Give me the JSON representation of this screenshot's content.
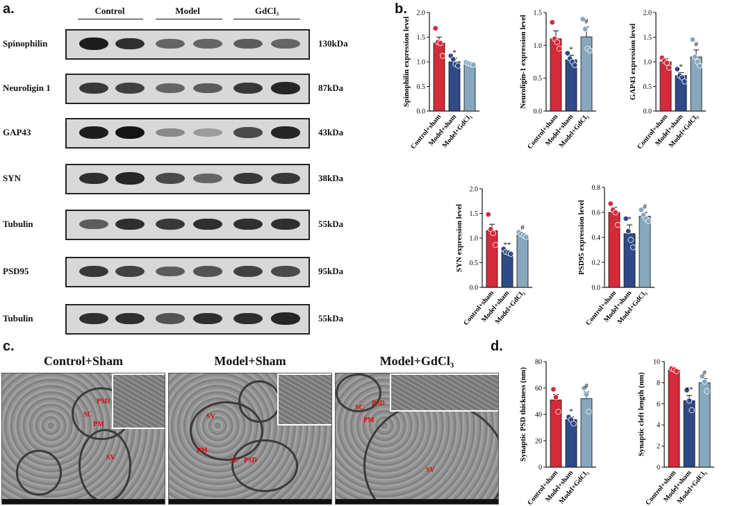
{
  "panels": {
    "a": "a.",
    "b": "b.",
    "c": "c.",
    "d": "d."
  },
  "western_blot": {
    "groups": [
      "Control",
      "Model",
      "GdCl₃"
    ],
    "rows": [
      {
        "label": "Spinophilin",
        "kda": "130kDa",
        "intensity": [
          0.95,
          0.85,
          0.55,
          0.55,
          0.6,
          0.55
        ]
      },
      {
        "label": "Neuroligin 1",
        "kda": "87kDa",
        "intensity": [
          0.8,
          0.75,
          0.55,
          0.6,
          0.8,
          0.9
        ]
      },
      {
        "label": "GAP43",
        "kda": "43kDa",
        "intensity": [
          0.95,
          1.0,
          0.35,
          0.25,
          0.7,
          0.9
        ]
      },
      {
        "label": "SYN",
        "kda": "38kDa",
        "intensity": [
          0.85,
          0.9,
          0.7,
          0.55,
          0.8,
          0.8
        ]
      },
      {
        "label": "Tubulin",
        "kda": "55kDa",
        "intensity": [
          0.6,
          0.85,
          0.8,
          0.85,
          0.85,
          0.85
        ]
      },
      {
        "label": "PSD95",
        "kda": "95kDa",
        "intensity": [
          0.8,
          0.75,
          0.6,
          0.65,
          0.75,
          0.7
        ]
      },
      {
        "label": "Tubulin",
        "kda": "55kDa",
        "intensity": [
          0.85,
          0.85,
          0.65,
          0.85,
          0.85,
          0.9
        ]
      }
    ]
  },
  "colors": {
    "control": "#d42a3a",
    "model": "#2f4a86",
    "gdcl3": "#86a7bd"
  },
  "chart_data": [
    {
      "type": "bar",
      "ylabel": "Spinophilin expression level",
      "categories": [
        "Control+sham",
        "Model+sham",
        "Model+GdCl₃"
      ],
      "values": [
        1.38,
        1.0,
        0.96
      ],
      "errors": [
        0.12,
        0.07,
        0.02
      ],
      "ylim": [
        0,
        2.0
      ],
      "yticks": [
        "0.0",
        "0.5",
        "1.0",
        "1.5",
        "2.0"
      ],
      "points": [
        [
          1.68,
          1.4,
          1.38,
          1.12
        ],
        [
          1.12,
          1.05,
          0.95,
          0.92
        ],
        [
          0.99,
          0.97,
          0.95,
          0.94
        ]
      ],
      "sig": [
        "",
        "*",
        ""
      ]
    },
    {
      "type": "bar",
      "ylabel": "Neuroligin-1 expression level",
      "categories": [
        "Control+sham",
        "Model+sham",
        "Model+GdCl₃"
      ],
      "values": [
        1.1,
        0.78,
        1.13
      ],
      "errors": [
        0.12,
        0.07,
        0.15
      ],
      "ylim": [
        0,
        1.5
      ],
      "yticks": [
        "0.0",
        "0.5",
        "1.0",
        "1.5"
      ],
      "points": [
        [
          1.35,
          1.1,
          1.05,
          0.95
        ],
        [
          0.88,
          0.8,
          0.75,
          0.7
        ],
        [
          1.4,
          1.25,
          0.95,
          0.92
        ]
      ],
      "sig": [
        "",
        "*",
        "#"
      ]
    },
    {
      "type": "bar",
      "ylabel": "GAP43 expression level",
      "categories": [
        "Control+sham",
        "Model+sham",
        "Model+GdCl₃"
      ],
      "values": [
        1.0,
        0.72,
        1.1
      ],
      "errors": [
        0.06,
        0.06,
        0.14
      ],
      "ylim": [
        0,
        2.0
      ],
      "yticks": [
        "0.0",
        "0.5",
        "1.0",
        "1.5",
        "2.0"
      ],
      "points": [
        [
          1.08,
          1.02,
          0.98,
          0.88
        ],
        [
          0.85,
          0.72,
          0.68,
          0.6
        ],
        [
          1.45,
          1.1,
          1.0,
          0.92
        ]
      ],
      "sig": [
        "",
        "*",
        "#"
      ]
    },
    {
      "type": "bar",
      "ylabel": "SYN expression level",
      "categories": [
        "Control+sham",
        "Model+sham",
        "Model+GdCl₃"
      ],
      "values": [
        1.15,
        0.72,
        1.06
      ],
      "errors": [
        0.13,
        0.03,
        0.04
      ],
      "ylim": [
        0,
        2.0
      ],
      "yticks": [
        "0.0",
        "0.5",
        "1.0",
        "1.5",
        "2.0"
      ],
      "points": [
        [
          1.48,
          1.18,
          1.1,
          0.86
        ],
        [
          0.78,
          0.72,
          0.7,
          0.68
        ],
        [
          1.12,
          1.08,
          1.05,
          1.02
        ]
      ],
      "sig": [
        "",
        "**",
        "#"
      ]
    },
    {
      "type": "bar",
      "ylabel": "PSD95 expression level",
      "categories": [
        "Control+sham",
        "Model+sham",
        "Model+GdCl₃"
      ],
      "values": [
        0.6,
        0.43,
        0.57
      ],
      "errors": [
        0.04,
        0.07,
        0.03
      ],
      "ylim": [
        0,
        0.8
      ],
      "yticks": [
        "0.0",
        "0.2",
        "0.4",
        "0.6",
        "0.8"
      ],
      "points": [
        [
          0.67,
          0.62,
          0.6,
          0.5
        ],
        [
          0.55,
          0.45,
          0.38,
          0.32
        ],
        [
          0.62,
          0.58,
          0.55,
          0.53
        ]
      ],
      "sig": [
        "",
        "*",
        "#"
      ]
    },
    {
      "type": "bar",
      "ylabel": "Synaptic PSD thickness (nm)",
      "categories": [
        "Control+sham",
        "Model+sham",
        "Model+GdCl₃"
      ],
      "values": [
        51,
        36,
        52
      ],
      "errors": [
        4,
        2,
        5
      ],
      "ylim": [
        0,
        80
      ],
      "yticks": [
        "0",
        "20",
        "40",
        "60",
        "80"
      ],
      "points": [
        [
          59,
          53,
          42
        ],
        [
          38,
          36,
          33
        ],
        [
          60,
          55,
          42
        ]
      ],
      "sig": [
        "",
        "*",
        "#"
      ]
    },
    {
      "type": "bar",
      "ylabel": "Synaptic cleft length (nm)",
      "categories": [
        "Control+sham",
        "Model+sham",
        "Model+GdCl₃"
      ],
      "values": [
        9.2,
        6.3,
        8.0
      ],
      "errors": [
        0.1,
        0.5,
        0.4
      ],
      "ylim": [
        0,
        10
      ],
      "yticks": [
        "0",
        "2",
        "4",
        "6",
        "8",
        "10"
      ],
      "points": [
        [
          9.35,
          9.25,
          9.1
        ],
        [
          7.3,
          6.3,
          5.4
        ],
        [
          8.6,
          8.1,
          7.2
        ]
      ],
      "sig": [
        "",
        "**",
        "#"
      ]
    }
  ],
  "em": {
    "titles": [
      "Control+Sham",
      "Model+Sham",
      "Model+GdCl₃"
    ],
    "labels": [
      [
        "PSD",
        "SC",
        "PM",
        "SV"
      ],
      [
        "SV",
        "PM",
        "SC",
        "PSD"
      ],
      [
        "SC",
        "PSD",
        "PM",
        "SV"
      ]
    ]
  }
}
